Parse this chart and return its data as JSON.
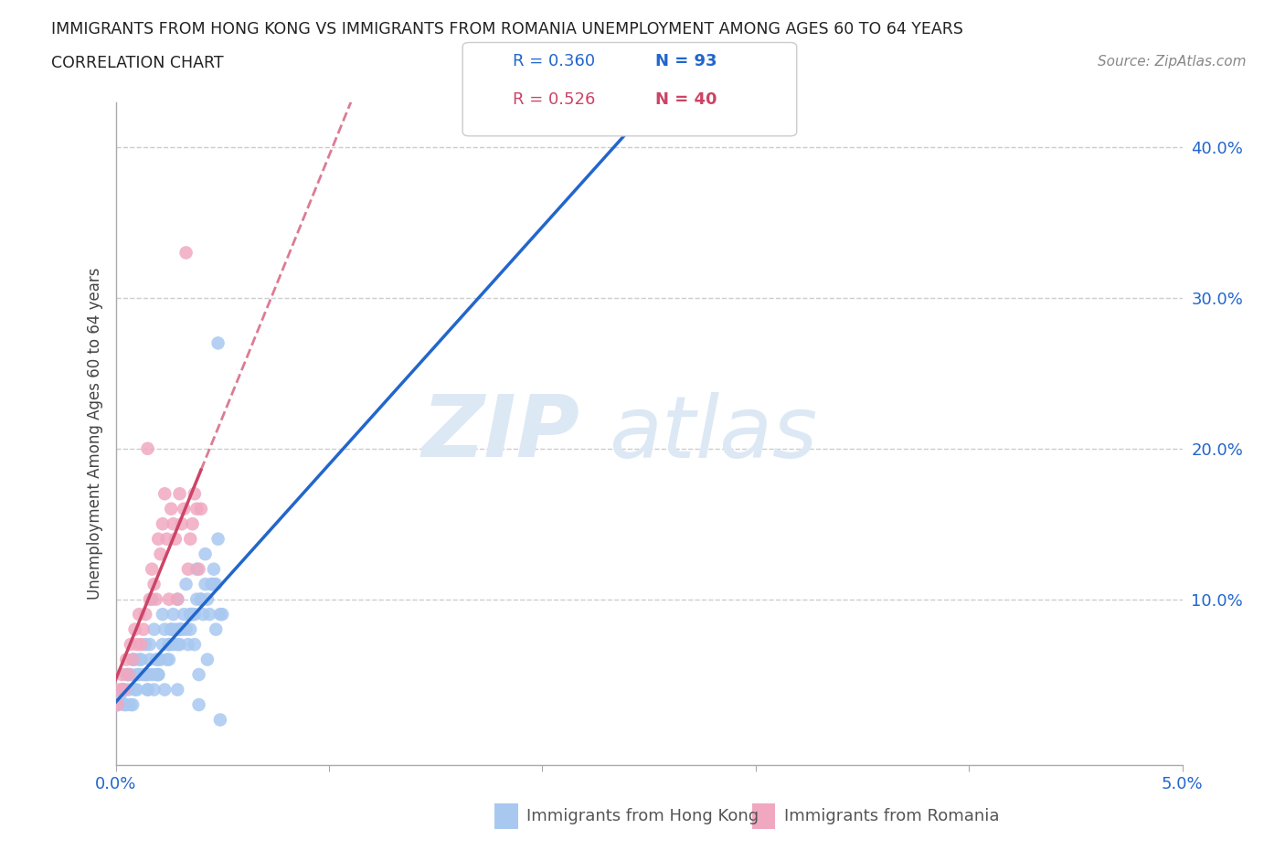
{
  "title_line1": "IMMIGRANTS FROM HONG KONG VS IMMIGRANTS FROM ROMANIA UNEMPLOYMENT AMONG AGES 60 TO 64 YEARS",
  "title_line2": "CORRELATION CHART",
  "source_text": "Source: ZipAtlas.com",
  "ylabel": "Unemployment Among Ages 60 to 64 years",
  "xlim": [
    0.0,
    0.05
  ],
  "ylim": [
    -0.01,
    0.43
  ],
  "xticks": [
    0.0,
    0.01,
    0.02,
    0.03,
    0.04,
    0.05
  ],
  "xticklabels": [
    "0.0%",
    "",
    "",
    "",
    "",
    "5.0%"
  ],
  "yticks": [
    0.0,
    0.1,
    0.2,
    0.3,
    0.4
  ],
  "yticklabels": [
    "",
    "10.0%",
    "20.0%",
    "30.0%",
    "40.0%"
  ],
  "hk_color": "#a8c8f0",
  "ro_color": "#f0a8c0",
  "hk_line_color": "#2266cc",
  "ro_line_color": "#cc4466",
  "legend_r_hk": "R = 0.360",
  "legend_n_hk": "N = 93",
  "legend_r_ro": "R = 0.526",
  "legend_n_ro": "N = 40",
  "watermark_zip": "ZIP",
  "watermark_atlas": "atlas",
  "hk_scatter_x": [
    0.0001,
    0.0002,
    0.0003,
    0.0004,
    0.0005,
    0.0005,
    0.0006,
    0.0007,
    0.0008,
    0.0009,
    0.001,
    0.001,
    0.0011,
    0.0012,
    0.0013,
    0.0014,
    0.0015,
    0.0015,
    0.0016,
    0.0017,
    0.0018,
    0.0019,
    0.002,
    0.002,
    0.0021,
    0.0022,
    0.0023,
    0.0024,
    0.0025,
    0.0025,
    0.0026,
    0.0027,
    0.0028,
    0.0029,
    0.003,
    0.003,
    0.0031,
    0.0032,
    0.0033,
    0.0034,
    0.0035,
    0.0035,
    0.0036,
    0.0037,
    0.0038,
    0.0039,
    0.004,
    0.0041,
    0.0042,
    0.0043,
    0.0044,
    0.0045,
    0.0046,
    0.0047,
    0.0048,
    0.0049,
    0.005,
    0.0008,
    0.0015,
    0.002,
    0.0025,
    0.003,
    0.0035,
    0.004,
    0.0045,
    0.0048,
    0.0042,
    0.0038,
    0.0033,
    0.0029,
    0.0022,
    0.0018,
    0.0014,
    0.0011,
    0.0006,
    0.0003,
    0.0016,
    0.0026,
    0.0036,
    0.0046,
    0.0017,
    0.0027,
    0.0037,
    0.0047,
    0.0009,
    0.0019,
    0.0029,
    0.0039,
    0.0049,
    0.0007,
    0.0023,
    0.0043,
    0.0004
  ],
  "hk_scatter_y": [
    0.03,
    0.035,
    0.04,
    0.03,
    0.05,
    0.03,
    0.04,
    0.05,
    0.06,
    0.04,
    0.05,
    0.04,
    0.05,
    0.06,
    0.05,
    0.05,
    0.05,
    0.04,
    0.06,
    0.05,
    0.04,
    0.06,
    0.06,
    0.05,
    0.06,
    0.07,
    0.08,
    0.06,
    0.07,
    0.06,
    0.08,
    0.07,
    0.08,
    0.07,
    0.08,
    0.07,
    0.08,
    0.09,
    0.08,
    0.07,
    0.09,
    0.08,
    0.09,
    0.09,
    0.1,
    0.05,
    0.1,
    0.09,
    0.11,
    0.1,
    0.09,
    0.11,
    0.12,
    0.11,
    0.14,
    0.09,
    0.09,
    0.03,
    0.04,
    0.05,
    0.07,
    0.08,
    0.09,
    0.1,
    0.11,
    0.27,
    0.13,
    0.12,
    0.11,
    0.1,
    0.09,
    0.08,
    0.07,
    0.06,
    0.05,
    0.04,
    0.07,
    0.08,
    0.09,
    0.11,
    0.1,
    0.09,
    0.07,
    0.08,
    0.06,
    0.05,
    0.04,
    0.03,
    0.02,
    0.03,
    0.04,
    0.06,
    0.04
  ],
  "ro_scatter_x": [
    0.0001,
    0.0002,
    0.0003,
    0.0004,
    0.0005,
    0.0006,
    0.0007,
    0.0008,
    0.0009,
    0.001,
    0.0011,
    0.0012,
    0.0013,
    0.0014,
    0.0015,
    0.0016,
    0.0017,
    0.0018,
    0.0019,
    0.002,
    0.0021,
    0.0022,
    0.0023,
    0.0024,
    0.0025,
    0.0026,
    0.0027,
    0.0028,
    0.0029,
    0.003,
    0.0031,
    0.0032,
    0.0033,
    0.0034,
    0.0035,
    0.0036,
    0.0037,
    0.0038,
    0.0039,
    0.004
  ],
  "ro_scatter_y": [
    0.03,
    0.04,
    0.05,
    0.04,
    0.06,
    0.05,
    0.07,
    0.06,
    0.08,
    0.07,
    0.09,
    0.07,
    0.08,
    0.09,
    0.2,
    0.1,
    0.12,
    0.11,
    0.1,
    0.14,
    0.13,
    0.15,
    0.17,
    0.14,
    0.1,
    0.16,
    0.15,
    0.14,
    0.1,
    0.17,
    0.15,
    0.16,
    0.33,
    0.12,
    0.14,
    0.15,
    0.17,
    0.16,
    0.12,
    0.16
  ],
  "background_color": "#ffffff",
  "grid_color": "#cccccc"
}
